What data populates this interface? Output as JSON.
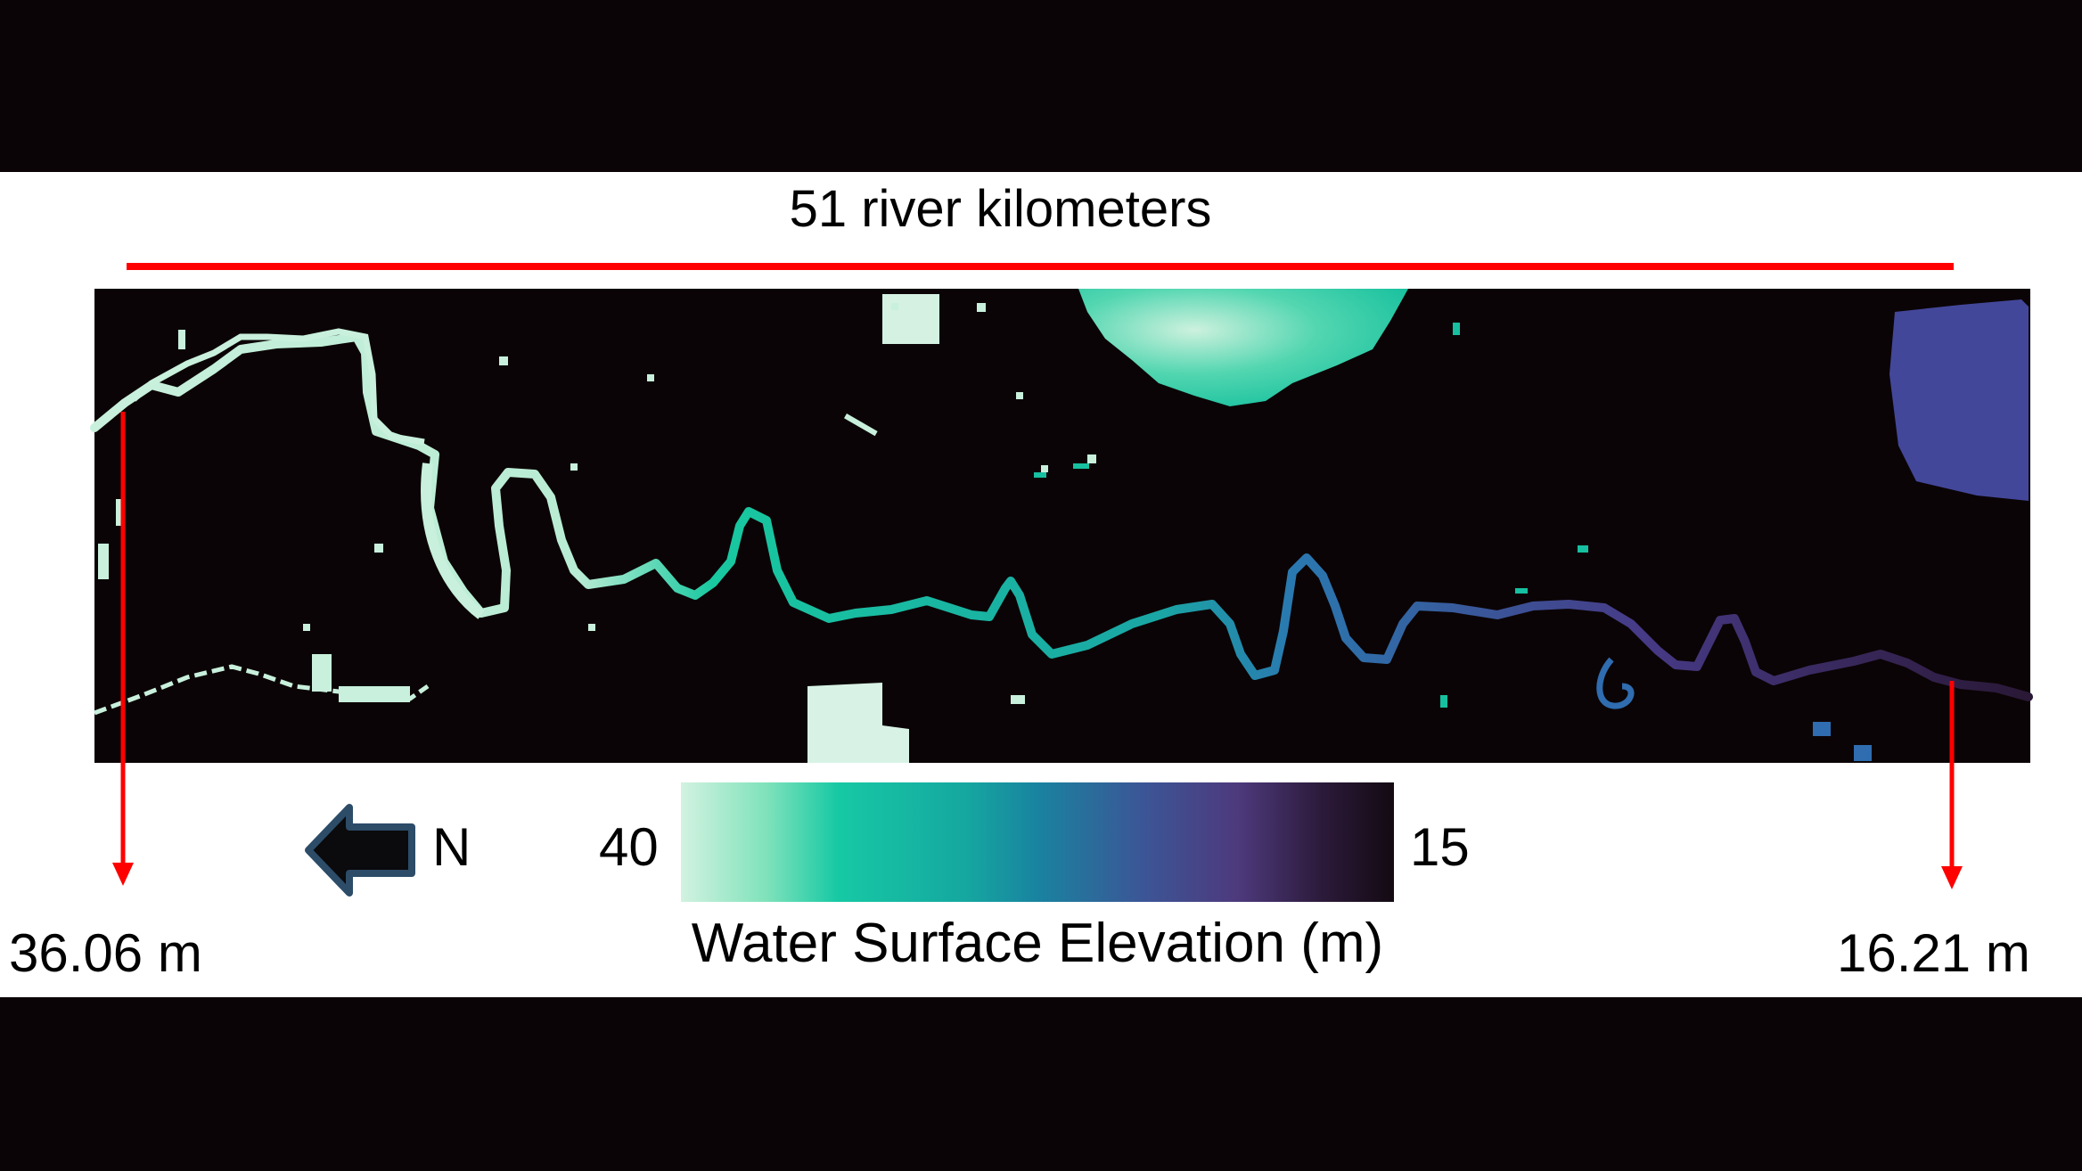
{
  "title": "51 river kilometers",
  "upstream_elevation": "36.06 m",
  "downstream_elevation": "16.21 m",
  "legend": {
    "title": "Water Surface Elevation (m)",
    "max_label": "40",
    "min_label": "15",
    "colors": [
      "#d2f2e0",
      "#16c9a4",
      "#1983a0",
      "#4d3a7d",
      "#130a12"
    ]
  },
  "north_label": "N",
  "icons": {
    "north_arrow": "left-arrow-icon"
  },
  "colors": {
    "annotation": "#ff0000",
    "background": "#0b0406",
    "no_data": "#0b0406"
  }
}
